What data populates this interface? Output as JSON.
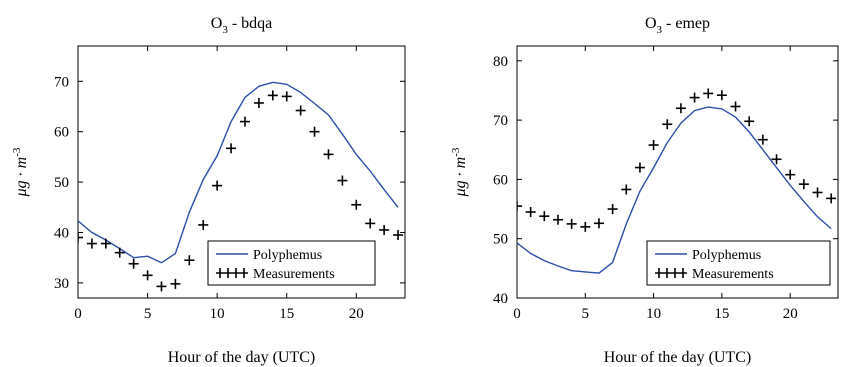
{
  "chart_data": [
    {
      "type": "line",
      "title_main": "O",
      "title_sub": "3",
      "title_rest": " - bdqa",
      "xlabel": "Hour of the day (UTC)",
      "ylabel_main": "μg · m",
      "ylabel_sup": "-3",
      "xlim": [
        0,
        23.5
      ],
      "ylim": [
        27,
        77
      ],
      "xticks": [
        0,
        5,
        10,
        15,
        20
      ],
      "yticks": [
        30,
        40,
        50,
        60,
        70
      ],
      "legend_position": "lower-right",
      "series": [
        {
          "name": "Polyphemus",
          "style": "line",
          "color": "#2b4fa8",
          "x": [
            0,
            1,
            2,
            3,
            4,
            5,
            6,
            7,
            8,
            9,
            10,
            11,
            12,
            13,
            14,
            15,
            16,
            17,
            18,
            19,
            20,
            21,
            22,
            23
          ],
          "y": [
            42.3,
            40.0,
            38.5,
            36.8,
            35.0,
            35.3,
            34.0,
            35.8,
            44.0,
            50.5,
            55.2,
            62.0,
            66.8,
            69.0,
            69.8,
            69.4,
            67.8,
            65.6,
            63.3,
            59.5,
            55.5,
            52.2,
            48.5,
            45.0
          ]
        },
        {
          "name": "Measurements",
          "style": "marker",
          "marker": "+",
          "color": "#000000",
          "x": [
            0,
            1,
            2,
            3,
            4,
            5,
            6,
            7,
            8,
            9,
            10,
            11,
            12,
            13,
            14,
            15,
            16,
            17,
            18,
            19,
            20,
            21,
            22,
            23
          ],
          "y": [
            39.0,
            37.8,
            37.8,
            36.0,
            33.8,
            31.5,
            29.3,
            29.8,
            34.5,
            41.5,
            49.3,
            56.7,
            62.0,
            65.7,
            67.2,
            67.0,
            64.2,
            60.0,
            55.5,
            50.3,
            45.5,
            41.8,
            40.5,
            39.5
          ]
        }
      ]
    },
    {
      "type": "line",
      "title_main": "O",
      "title_sub": "3",
      "title_rest": " - emep",
      "xlabel": "Hour of the day (UTC)",
      "ylabel_main": "μg · m",
      "ylabel_sup": "-3",
      "xlim": [
        0,
        23.5
      ],
      "ylim": [
        40,
        82.5
      ],
      "xticks": [
        0,
        5,
        10,
        15,
        20
      ],
      "yticks": [
        40,
        50,
        60,
        70,
        80
      ],
      "legend_position": "lower-right",
      "series": [
        {
          "name": "Polyphemus",
          "style": "line",
          "color": "#2b4fa8",
          "x": [
            0,
            1,
            2,
            3,
            4,
            5,
            6,
            7,
            8,
            9,
            10,
            11,
            12,
            13,
            14,
            15,
            16,
            17,
            18,
            19,
            20,
            21,
            22,
            23
          ],
          "y": [
            49.3,
            47.5,
            46.3,
            45.4,
            44.6,
            44.4,
            44.2,
            46.0,
            52.5,
            58.0,
            62.0,
            66.2,
            69.5,
            71.6,
            72.2,
            71.9,
            70.5,
            68.0,
            65.0,
            62.0,
            59.0,
            56.3,
            53.7,
            51.7
          ]
        },
        {
          "name": "Measurements",
          "style": "marker",
          "marker": "+",
          "color": "#000000",
          "x": [
            0,
            1,
            2,
            3,
            4,
            5,
            6,
            7,
            8,
            9,
            10,
            11,
            12,
            13,
            14,
            15,
            16,
            17,
            18,
            19,
            20,
            21,
            22,
            23
          ],
          "y": [
            55.5,
            54.5,
            53.8,
            53.2,
            52.5,
            52.0,
            52.6,
            55.0,
            58.3,
            62.0,
            65.8,
            69.3,
            72.0,
            73.8,
            74.5,
            74.2,
            72.3,
            69.8,
            66.7,
            63.4,
            60.8,
            59.2,
            57.8,
            56.8
          ]
        }
      ]
    }
  ]
}
